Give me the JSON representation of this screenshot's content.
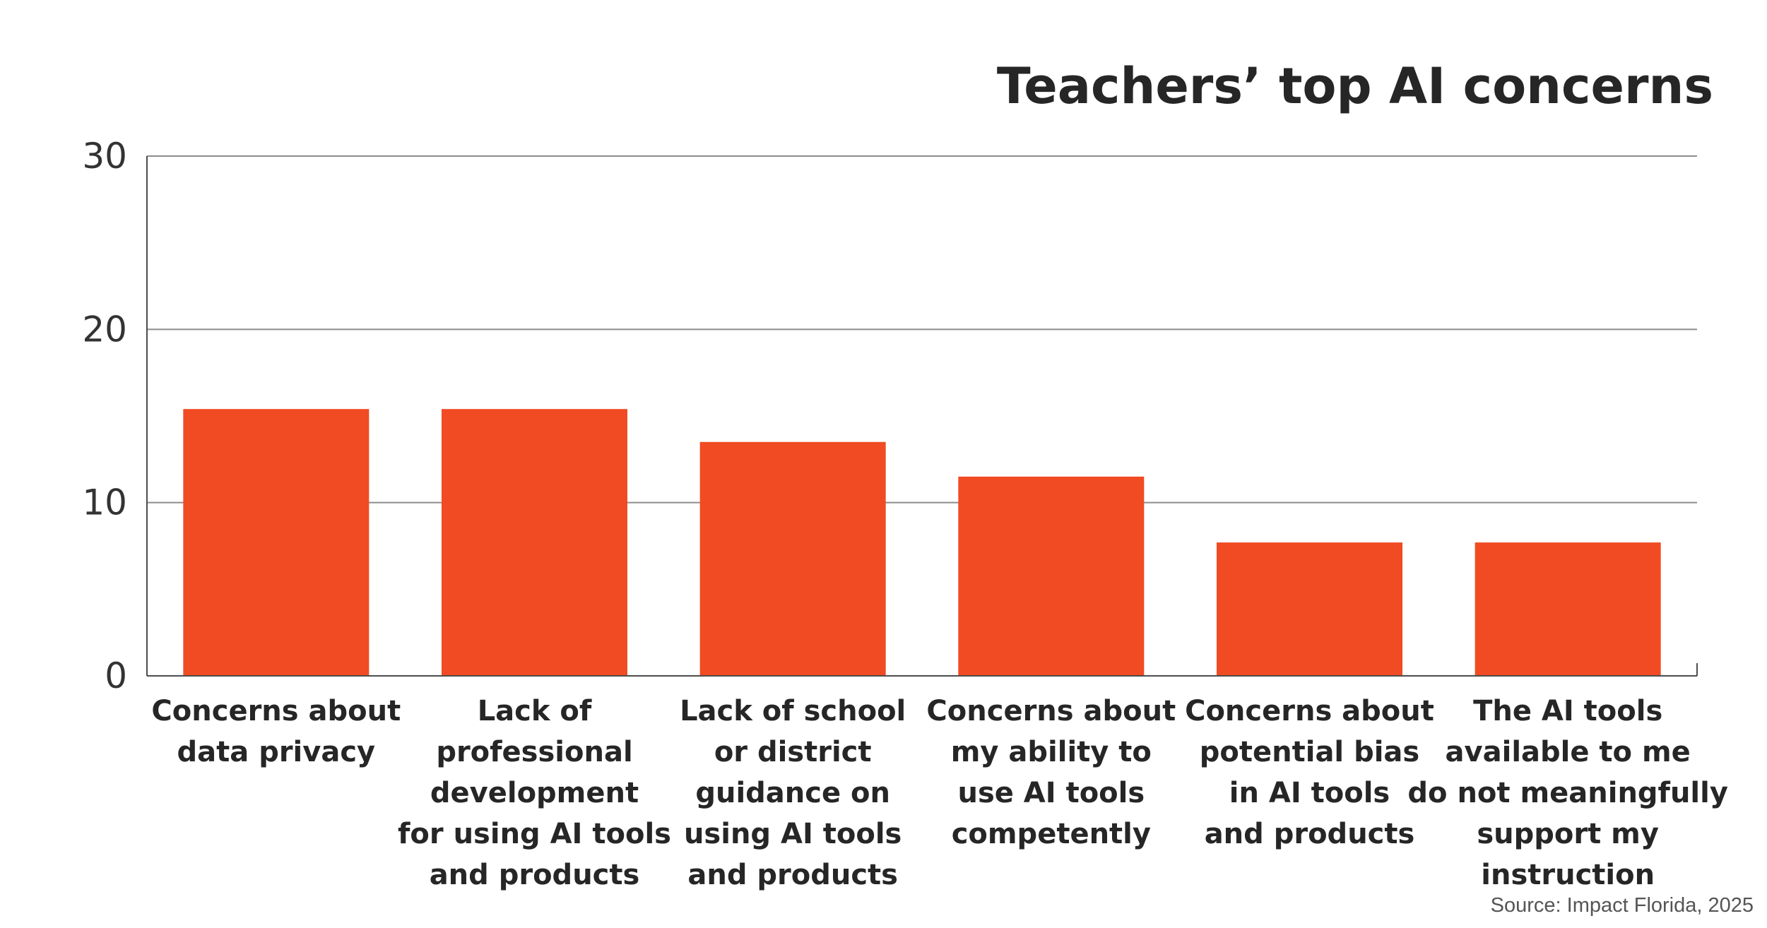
{
  "chart_data": {
    "type": "bar",
    "title": "Teachers’ top AI concerns",
    "xlabel": "",
    "ylabel": "",
    "ylim": [
      0,
      30
    ],
    "yticks": [
      "0",
      "10",
      "20",
      "30"
    ],
    "grid": true,
    "color": "#f04b23",
    "categories": [
      "Concerns about data privacy",
      "Lack of professional development for using AI tools and products",
      "Lack of school or district guidance on using AI tools and products",
      "Concerns about my ability to use AI tools competently",
      "Concerns about potential bias in AI tools and products",
      "The AI tools available to me do not meaningfully support my instruction"
    ],
    "category_lines": [
      [
        "Concerns about",
        "data privacy"
      ],
      [
        "Lack of",
        "professional",
        "development",
        "for using AI tools",
        "and products"
      ],
      [
        "Lack of school",
        "or district",
        "guidance on",
        "using AI tools",
        "and products"
      ],
      [
        "Concerns about",
        "my ability to",
        "use AI tools",
        "competently"
      ],
      [
        "Concerns about",
        "potential bias",
        "in AI tools",
        "and products"
      ],
      [
        "The AI tools",
        "available to me",
        "do not meaningfully",
        "support my",
        "instruction"
      ]
    ],
    "values": [
      15.4,
      15.4,
      13.5,
      11.5,
      7.7,
      7.7
    ],
    "source": "Source: Impact Florida, 2025"
  }
}
